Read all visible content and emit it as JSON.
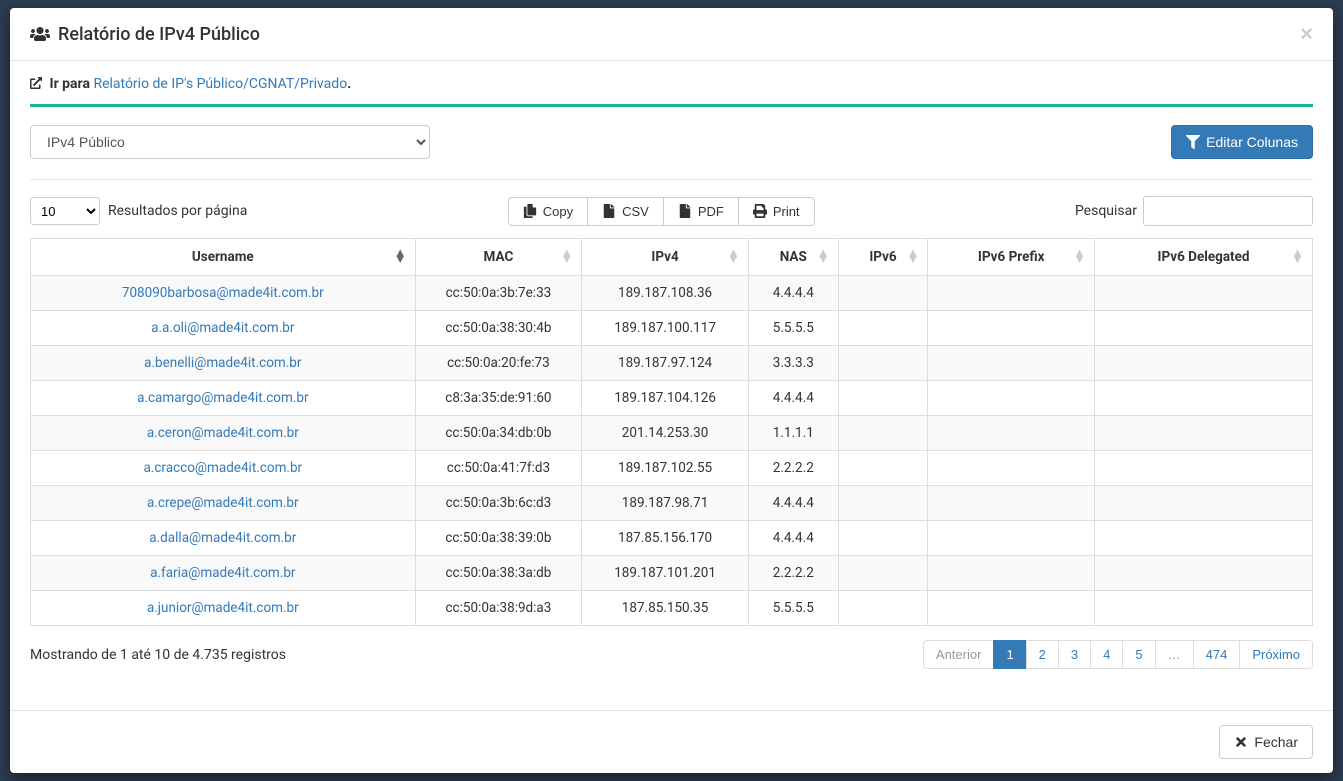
{
  "header": {
    "title": "Relatório de IPv4 Público"
  },
  "nav": {
    "prefix": "Ir para ",
    "link_text": "Relatório de IP's Público/CGNAT/Privado",
    "suffix": "."
  },
  "controls": {
    "select_value": "IPv4 Público",
    "edit_columns_label": "Editar Colunas"
  },
  "toolbar": {
    "page_size": "10",
    "page_size_suffix": "Resultados por página",
    "copy_label": "Copy",
    "csv_label": "CSV",
    "pdf_label": "PDF",
    "print_label": "Print",
    "search_label": "Pesquisar"
  },
  "table": {
    "columns": {
      "username": "Username",
      "mac": "MAC",
      "ipv4": "IPv4",
      "nas": "NAS",
      "ipv6": "IPv6",
      "ipv6_prefix": "IPv6 Prefix",
      "ipv6_delegated": "IPv6 Delegated"
    },
    "rows": [
      {
        "username": "708090barbosa@made4it.com.br",
        "mac": "cc:50:0a:3b:7e:33",
        "ipv4": "189.187.108.36",
        "nas": "4.4.4.4",
        "ipv6": "",
        "ipv6_prefix": "",
        "ipv6_delegated": ""
      },
      {
        "username": "a.a.oli@made4it.com.br",
        "mac": "cc:50:0a:38:30:4b",
        "ipv4": "189.187.100.117",
        "nas": "5.5.5.5",
        "ipv6": "",
        "ipv6_prefix": "",
        "ipv6_delegated": ""
      },
      {
        "username": "a.benelli@made4it.com.br",
        "mac": "cc:50:0a:20:fe:73",
        "ipv4": "189.187.97.124",
        "nas": "3.3.3.3",
        "ipv6": "",
        "ipv6_prefix": "",
        "ipv6_delegated": ""
      },
      {
        "username": "a.camargo@made4it.com.br",
        "mac": "c8:3a:35:de:91:60",
        "ipv4": "189.187.104.126",
        "nas": "4.4.4.4",
        "ipv6": "",
        "ipv6_prefix": "",
        "ipv6_delegated": ""
      },
      {
        "username": "a.ceron@made4it.com.br",
        "mac": "cc:50:0a:34:db:0b",
        "ipv4": "201.14.253.30",
        "nas": "1.1.1.1",
        "ipv6": "",
        "ipv6_prefix": "",
        "ipv6_delegated": ""
      },
      {
        "username": "a.cracco@made4it.com.br",
        "mac": "cc:50:0a:41:7f:d3",
        "ipv4": "189.187.102.55",
        "nas": "2.2.2.2",
        "ipv6": "",
        "ipv6_prefix": "",
        "ipv6_delegated": ""
      },
      {
        "username": "a.crepe@made4it.com.br",
        "mac": "cc:50:0a:3b:6c:d3",
        "ipv4": "189.187.98.71",
        "nas": "4.4.4.4",
        "ipv6": "",
        "ipv6_prefix": "",
        "ipv6_delegated": ""
      },
      {
        "username": "a.dalla@made4it.com.br",
        "mac": "cc:50:0a:38:39:0b",
        "ipv4": "187.85.156.170",
        "nas": "4.4.4.4",
        "ipv6": "",
        "ipv6_prefix": "",
        "ipv6_delegated": ""
      },
      {
        "username": "a.faria@made4it.com.br",
        "mac": "cc:50:0a:38:3a:db",
        "ipv4": "189.187.101.201",
        "nas": "2.2.2.2",
        "ipv6": "",
        "ipv6_prefix": "",
        "ipv6_delegated": ""
      },
      {
        "username": "a.junior@made4it.com.br",
        "mac": "cc:50:0a:38:9d:a3",
        "ipv4": "187.85.150.35",
        "nas": "5.5.5.5",
        "ipv6": "",
        "ipv6_prefix": "",
        "ipv6_delegated": ""
      }
    ],
    "column_widths": {
      "username": "30%",
      "mac": "13%",
      "ipv4": "13%",
      "nas": "7%",
      "ipv6": "7%",
      "ipv6_prefix": "13%",
      "ipv6_delegated": "17%"
    }
  },
  "footer_info": "Mostrando de 1 até 10 de 4.735 registros",
  "pagination": {
    "prev": "Anterior",
    "pages": [
      "1",
      "2",
      "3",
      "4",
      "5",
      "…",
      "474"
    ],
    "active_index": 0,
    "next": "Próximo"
  },
  "modal_footer": {
    "close_label": "Fechar"
  },
  "colors": {
    "primary": "#337ab7",
    "accent": "#1ab394",
    "border": "#ddd",
    "stripe": "#f9f9f9",
    "text": "#333"
  }
}
